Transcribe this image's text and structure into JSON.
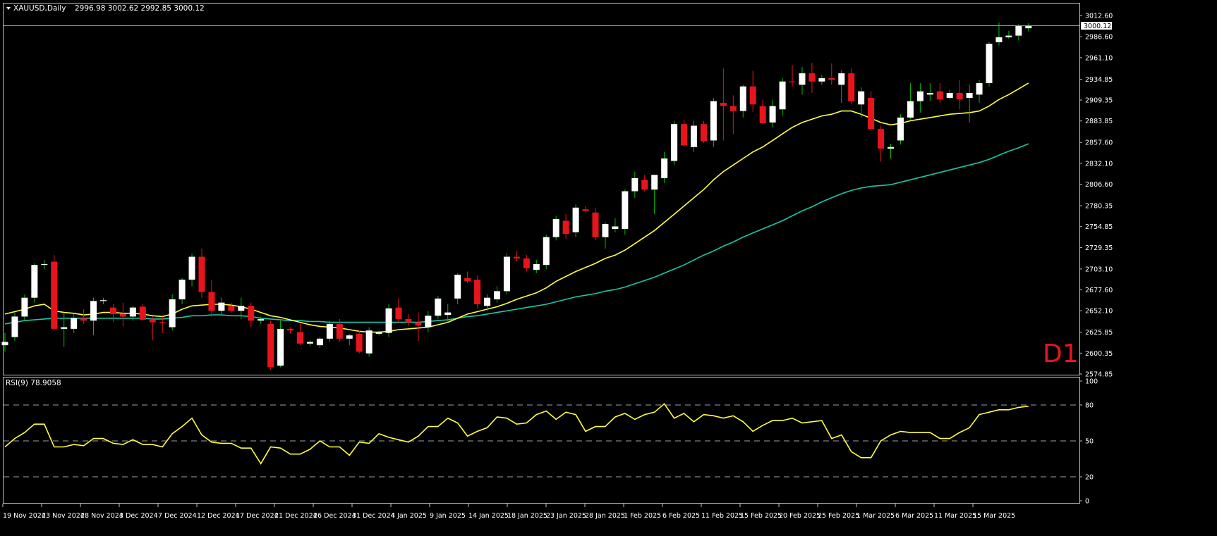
{
  "header": {
    "symbol_timeframe": "XAUUSD,Daily",
    "ohlc": "2996.98 3002.62 2992.85 3000.12"
  },
  "timeframe_label": "D1",
  "price_axis": {
    "ticks": [
      "3012.60",
      "2986.60",
      "2961.10",
      "2934.85",
      "2909.35",
      "2883.85",
      "2857.60",
      "2832.10",
      "2806.60",
      "2780.35",
      "2754.85",
      "2729.35",
      "2703.10",
      "2677.60",
      "2652.10",
      "2625.85",
      "2600.35",
      "2574.85"
    ],
    "last_price_label": "3000.12"
  },
  "rsi_panel": {
    "label": "RSI(9) 78.9058",
    "ticks": [
      "100",
      "80",
      "50",
      "20",
      "0"
    ],
    "levels": [
      80,
      50,
      20
    ]
  },
  "date_axis": {
    "labels": [
      "19 Nov 2024",
      "23 Nov 2024",
      "28 Nov 2024",
      "3 Dec 2024",
      "7 Dec 2024",
      "12 Dec 2024",
      "17 Dec 2024",
      "21 Dec 2024",
      "26 Dec 2024",
      "31 Dec 2024",
      "4 Jan 2025",
      "9 Jan 2025",
      "14 Jan 2025",
      "18 Jan 2025",
      "23 Jan 2025",
      "28 Jan 2025",
      "1 Feb 2025",
      "6 Feb 2025",
      "11 Feb 2025",
      "15 Feb 2025",
      "20 Feb 2025",
      "25 Feb 2025",
      "1 Mar 2025",
      "6 Mar 2025",
      "11 Mar 2025",
      "15 Mar 2025"
    ]
  },
  "colors": {
    "background": "#000000",
    "bull_candle": "#ffffff",
    "bear_candle": "#e8141c",
    "wick_bull": "#00c000",
    "wick_bear": "#e8141c",
    "ma_fast": "#ffff3c",
    "ma_slow": "#18c8a8",
    "rsi_line": "#ffff3c",
    "axis_text": "#ffffff",
    "frame": "#c0c0c0",
    "timeframe_label": "#e8141c"
  },
  "chart_data": {
    "type": "candlestick",
    "symbol": "XAUUSD",
    "timeframe": "Daily",
    "price_range": [
      2570,
      3020
    ],
    "candles": [
      {
        "o": 2610,
        "h": 2625,
        "l": 2602,
        "c": 2614
      },
      {
        "o": 2620,
        "h": 2650,
        "l": 2615,
        "c": 2645
      },
      {
        "o": 2645,
        "h": 2672,
        "l": 2640,
        "c": 2668
      },
      {
        "o": 2668,
        "h": 2710,
        "l": 2662,
        "c": 2708
      },
      {
        "o": 2708,
        "h": 2714,
        "l": 2703,
        "c": 2709
      },
      {
        "o": 2712,
        "h": 2720,
        "l": 2628,
        "c": 2630
      },
      {
        "o": 2630,
        "h": 2650,
        "l": 2608,
        "c": 2632
      },
      {
        "o": 2630,
        "h": 2648,
        "l": 2625,
        "c": 2643
      },
      {
        "o": 2643,
        "h": 2654,
        "l": 2636,
        "c": 2640
      },
      {
        "o": 2640,
        "h": 2668,
        "l": 2622,
        "c": 2664
      },
      {
        "o": 2664,
        "h": 2668,
        "l": 2660,
        "c": 2665
      },
      {
        "o": 2656,
        "h": 2660,
        "l": 2638,
        "c": 2648
      },
      {
        "o": 2648,
        "h": 2662,
        "l": 2633,
        "c": 2645
      },
      {
        "o": 2645,
        "h": 2658,
        "l": 2640,
        "c": 2656
      },
      {
        "o": 2657,
        "h": 2660,
        "l": 2640,
        "c": 2641
      },
      {
        "o": 2641,
        "h": 2645,
        "l": 2616,
        "c": 2638
      },
      {
        "o": 2638,
        "h": 2645,
        "l": 2625,
        "c": 2637
      },
      {
        "o": 2632,
        "h": 2672,
        "l": 2628,
        "c": 2666
      },
      {
        "o": 2666,
        "h": 2692,
        "l": 2660,
        "c": 2690
      },
      {
        "o": 2690,
        "h": 2722,
        "l": 2682,
        "c": 2718
      },
      {
        "o": 2718,
        "h": 2728,
        "l": 2668,
        "c": 2675
      },
      {
        "o": 2675,
        "h": 2690,
        "l": 2645,
        "c": 2652
      },
      {
        "o": 2652,
        "h": 2668,
        "l": 2648,
        "c": 2662
      },
      {
        "o": 2658,
        "h": 2662,
        "l": 2650,
        "c": 2652
      },
      {
        "o": 2652,
        "h": 2668,
        "l": 2642,
        "c": 2658
      },
      {
        "o": 2658,
        "h": 2662,
        "l": 2632,
        "c": 2640
      },
      {
        "o": 2640,
        "h": 2645,
        "l": 2636,
        "c": 2642
      },
      {
        "o": 2636,
        "h": 2640,
        "l": 2580,
        "c": 2583
      },
      {
        "o": 2585,
        "h": 2640,
        "l": 2583,
        "c": 2630
      },
      {
        "o": 2630,
        "h": 2632,
        "l": 2624,
        "c": 2628
      },
      {
        "o": 2626,
        "h": 2636,
        "l": 2610,
        "c": 2612
      },
      {
        "o": 2612,
        "h": 2616,
        "l": 2609,
        "c": 2614
      },
      {
        "o": 2610,
        "h": 2620,
        "l": 2607,
        "c": 2618
      },
      {
        "o": 2618,
        "h": 2640,
        "l": 2614,
        "c": 2636
      },
      {
        "o": 2636,
        "h": 2642,
        "l": 2614,
        "c": 2618
      },
      {
        "o": 2618,
        "h": 2624,
        "l": 2610,
        "c": 2622
      },
      {
        "o": 2624,
        "h": 2628,
        "l": 2600,
        "c": 2602
      },
      {
        "o": 2600,
        "h": 2632,
        "l": 2596,
        "c": 2628
      },
      {
        "o": 2624,
        "h": 2628,
        "l": 2622,
        "c": 2626
      },
      {
        "o": 2625,
        "h": 2660,
        "l": 2620,
        "c": 2655
      },
      {
        "o": 2656,
        "h": 2668,
        "l": 2636,
        "c": 2642
      },
      {
        "o": 2642,
        "h": 2648,
        "l": 2634,
        "c": 2638
      },
      {
        "o": 2638,
        "h": 2650,
        "l": 2615,
        "c": 2634
      },
      {
        "o": 2632,
        "h": 2652,
        "l": 2626,
        "c": 2646
      },
      {
        "o": 2646,
        "h": 2670,
        "l": 2642,
        "c": 2667
      },
      {
        "o": 2647,
        "h": 2660,
        "l": 2638,
        "c": 2650
      },
      {
        "o": 2667,
        "h": 2698,
        "l": 2660,
        "c": 2696
      },
      {
        "o": 2692,
        "h": 2700,
        "l": 2686,
        "c": 2688
      },
      {
        "o": 2690,
        "h": 2695,
        "l": 2655,
        "c": 2660
      },
      {
        "o": 2658,
        "h": 2672,
        "l": 2652,
        "c": 2668
      },
      {
        "o": 2666,
        "h": 2682,
        "l": 2662,
        "c": 2676
      },
      {
        "o": 2676,
        "h": 2722,
        "l": 2672,
        "c": 2718
      },
      {
        "o": 2718,
        "h": 2725,
        "l": 2712,
        "c": 2716
      },
      {
        "o": 2716,
        "h": 2720,
        "l": 2700,
        "c": 2704
      },
      {
        "o": 2702,
        "h": 2714,
        "l": 2698,
        "c": 2709
      },
      {
        "o": 2708,
        "h": 2745,
        "l": 2703,
        "c": 2742
      },
      {
        "o": 2742,
        "h": 2768,
        "l": 2738,
        "c": 2764
      },
      {
        "o": 2762,
        "h": 2770,
        "l": 2740,
        "c": 2746
      },
      {
        "o": 2748,
        "h": 2782,
        "l": 2742,
        "c": 2778
      },
      {
        "o": 2776,
        "h": 2780,
        "l": 2772,
        "c": 2774
      },
      {
        "o": 2772,
        "h": 2778,
        "l": 2738,
        "c": 2742
      },
      {
        "o": 2742,
        "h": 2760,
        "l": 2728,
        "c": 2758
      },
      {
        "o": 2752,
        "h": 2765,
        "l": 2748,
        "c": 2755
      },
      {
        "o": 2752,
        "h": 2800,
        "l": 2745,
        "c": 2798
      },
      {
        "o": 2798,
        "h": 2822,
        "l": 2790,
        "c": 2814
      },
      {
        "o": 2812,
        "h": 2818,
        "l": 2798,
        "c": 2800
      },
      {
        "o": 2800,
        "h": 2816,
        "l": 2770,
        "c": 2818
      },
      {
        "o": 2814,
        "h": 2846,
        "l": 2808,
        "c": 2838
      },
      {
        "o": 2835,
        "h": 2884,
        "l": 2830,
        "c": 2880
      },
      {
        "o": 2880,
        "h": 2885,
        "l": 2852,
        "c": 2854
      },
      {
        "o": 2852,
        "h": 2884,
        "l": 2846,
        "c": 2878
      },
      {
        "o": 2880,
        "h": 2884,
        "l": 2857,
        "c": 2859
      },
      {
        "o": 2860,
        "h": 2912,
        "l": 2852,
        "c": 2908
      },
      {
        "o": 2906,
        "h": 2948,
        "l": 2860,
        "c": 2902
      },
      {
        "o": 2902,
        "h": 2915,
        "l": 2868,
        "c": 2896
      },
      {
        "o": 2896,
        "h": 2928,
        "l": 2888,
        "c": 2926
      },
      {
        "o": 2926,
        "h": 2945,
        "l": 2895,
        "c": 2904
      },
      {
        "o": 2902,
        "h": 2910,
        "l": 2880,
        "c": 2881
      },
      {
        "o": 2882,
        "h": 2910,
        "l": 2876,
        "c": 2902
      },
      {
        "o": 2898,
        "h": 2936,
        "l": 2890,
        "c": 2932
      },
      {
        "o": 2932,
        "h": 2952,
        "l": 2926,
        "c": 2931
      },
      {
        "o": 2928,
        "h": 2950,
        "l": 2916,
        "c": 2942
      },
      {
        "o": 2942,
        "h": 2955,
        "l": 2918,
        "c": 2932
      },
      {
        "o": 2932,
        "h": 2940,
        "l": 2928,
        "c": 2936
      },
      {
        "o": 2936,
        "h": 2954,
        "l": 2928,
        "c": 2934
      },
      {
        "o": 2928,
        "h": 2946,
        "l": 2906,
        "c": 2942
      },
      {
        "o": 2942,
        "h": 2948,
        "l": 2904,
        "c": 2908
      },
      {
        "o": 2904,
        "h": 2925,
        "l": 2888,
        "c": 2920
      },
      {
        "o": 2912,
        "h": 2920,
        "l": 2872,
        "c": 2874
      },
      {
        "o": 2874,
        "h": 2878,
        "l": 2834,
        "c": 2850
      },
      {
        "o": 2850,
        "h": 2856,
        "l": 2838,
        "c": 2852
      },
      {
        "o": 2860,
        "h": 2892,
        "l": 2855,
        "c": 2888
      },
      {
        "o": 2888,
        "h": 2930,
        "l": 2886,
        "c": 2908
      },
      {
        "o": 2908,
        "h": 2930,
        "l": 2894,
        "c": 2920
      },
      {
        "o": 2916,
        "h": 2930,
        "l": 2908,
        "c": 2918
      },
      {
        "o": 2920,
        "h": 2930,
        "l": 2906,
        "c": 2910
      },
      {
        "o": 2912,
        "h": 2922,
        "l": 2910,
        "c": 2918
      },
      {
        "o": 2918,
        "h": 2934,
        "l": 2898,
        "c": 2910
      },
      {
        "o": 2912,
        "h": 2928,
        "l": 2882,
        "c": 2918
      },
      {
        "o": 2916,
        "h": 2934,
        "l": 2906,
        "c": 2930
      },
      {
        "o": 2930,
        "h": 2980,
        "l": 2926,
        "c": 2978
      },
      {
        "o": 2980,
        "h": 3004,
        "l": 2976,
        "c": 2986
      },
      {
        "o": 2986,
        "h": 2994,
        "l": 2984,
        "c": 2988
      },
      {
        "o": 2988,
        "h": 3002,
        "l": 2982,
        "c": 3000
      },
      {
        "o": 2997,
        "h": 3003,
        "l": 2993,
        "c": 3000
      }
    ],
    "ma_fast": [
      2648,
      2651,
      2654,
      2658,
      2660,
      2652,
      2650,
      2649,
      2647,
      2648,
      2650,
      2650,
      2649,
      2649,
      2648,
      2646,
      2645,
      2648,
      2654,
      2658,
      2659,
      2660,
      2660,
      2659,
      2657,
      2654,
      2650,
      2646,
      2644,
      2641,
      2638,
      2635,
      2633,
      2632,
      2631,
      2629,
      2627,
      2626,
      2626,
      2627,
      2629,
      2630,
      2631,
      2632,
      2635,
      2638,
      2643,
      2648,
      2651,
      2654,
      2657,
      2661,
      2666,
      2670,
      2674,
      2680,
      2688,
      2694,
      2700,
      2705,
      2710,
      2716,
      2720,
      2726,
      2734,
      2742,
      2750,
      2760,
      2770,
      2780,
      2790,
      2800,
      2812,
      2822,
      2830,
      2838,
      2846,
      2852,
      2860,
      2868,
      2876,
      2882,
      2886,
      2890,
      2892,
      2896,
      2896,
      2892,
      2887,
      2882,
      2879,
      2881,
      2884,
      2886,
      2888,
      2890,
      2892,
      2893,
      2894,
      2896,
      2902,
      2910,
      2916,
      2923,
      2930
    ],
    "ma_slow": [
      2636,
      2638,
      2640,
      2641,
      2642,
      2643,
      2643,
      2643,
      2643,
      2643,
      2643,
      2643,
      2643,
      2643,
      2643,
      2642,
      2642,
      2643,
      2644,
      2646,
      2646,
      2647,
      2647,
      2646,
      2646,
      2645,
      2643,
      2642,
      2641,
      2640,
      2640,
      2639,
      2639,
      2638,
      2638,
      2638,
      2638,
      2638,
      2638,
      2638,
      2638,
      2638,
      2638,
      2639,
      2640,
      2641,
      2643,
      2645,
      2646,
      2648,
      2650,
      2652,
      2654,
      2656,
      2658,
      2660,
      2663,
      2666,
      2669,
      2671,
      2673,
      2676,
      2678,
      2681,
      2685,
      2689,
      2693,
      2698,
      2703,
      2708,
      2714,
      2720,
      2725,
      2731,
      2736,
      2742,
      2747,
      2752,
      2757,
      2762,
      2768,
      2774,
      2779,
      2785,
      2790,
      2795,
      2799,
      2802,
      2804,
      2805,
      2806,
      2809,
      2812,
      2815,
      2818,
      2821,
      2824,
      2827,
      2830,
      2833,
      2837,
      2842,
      2847,
      2851,
      2856
    ],
    "rsi": [
      45,
      52,
      57,
      64,
      64,
      45,
      45,
      47,
      46,
      52,
      52,
      48,
      47,
      51,
      47,
      47,
      45,
      56,
      62,
      69,
      55,
      49,
      48,
      48,
      44,
      44,
      31,
      45,
      44,
      39,
      39,
      43,
      50,
      45,
      45,
      38,
      49,
      48,
      56,
      53,
      51,
      49,
      54,
      62,
      62,
      69,
      65,
      54,
      58,
      61,
      70,
      69,
      64,
      65,
      72,
      75,
      68,
      74,
      72,
      58,
      62,
      62,
      70,
      73,
      68,
      72,
      74,
      81,
      69,
      73,
      66,
      72,
      71,
      69,
      71,
      66,
      58,
      63,
      67,
      67,
      69,
      65,
      66,
      67,
      52,
      55,
      41,
      36,
      36,
      50,
      55,
      58,
      57,
      57,
      57,
      52,
      52,
      57,
      61,
      72,
      74,
      76,
      76,
      78,
      79
    ]
  }
}
